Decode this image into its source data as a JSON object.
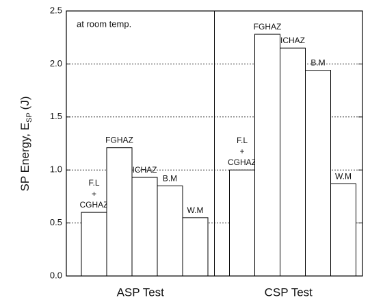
{
  "chart_data": {
    "type": "bar",
    "ylabel": {
      "text": "SP Energy, E",
      "subscript": "SP",
      "unit": "(J)"
    },
    "annotation": "at room temp.",
    "categories": [
      [
        "F.L",
        "+",
        "CGHAZ"
      ],
      [
        "FGHAZ"
      ],
      [
        "ICHAZ"
      ],
      [
        "B.M"
      ],
      [
        "W.M"
      ]
    ],
    "groups": [
      {
        "name": "ASP Test",
        "values": [
          0.6,
          1.21,
          0.93,
          0.85,
          0.55
        ]
      },
      {
        "name": "CSP Test",
        "values": [
          1.0,
          2.28,
          2.15,
          1.94,
          0.87
        ]
      }
    ],
    "color": "#ffffff",
    "ylim": [
      0,
      2.5
    ],
    "yticks": [
      {
        "value": 0,
        "label": "0.0"
      },
      0.5,
      {
        "value": 1,
        "label": "1.0"
      },
      1.5,
      {
        "value": 2,
        "label": "2.0"
      },
      2.5
    ],
    "grid": true
  }
}
